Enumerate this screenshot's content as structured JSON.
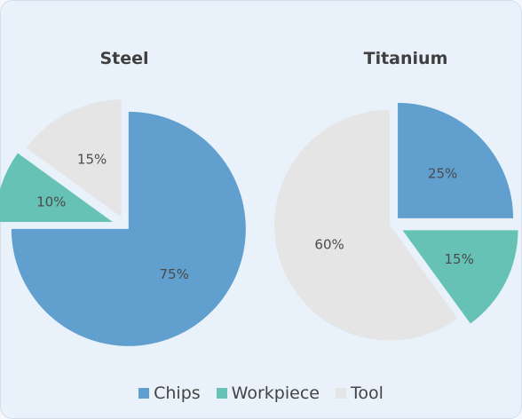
{
  "chart_data": [
    {
      "type": "pie",
      "title": "Steel",
      "slices": [
        {
          "label": "Chips",
          "value": 75,
          "color": "#619fcf"
        },
        {
          "label": "Workpiece",
          "value": 10,
          "color": "#66c2b4"
        },
        {
          "label": "Tool",
          "value": 15,
          "color": "#e5e5e5"
        }
      ],
      "data_labels": [
        "75%",
        "10%",
        "15%"
      ]
    },
    {
      "type": "pie",
      "title": "Titanium",
      "slices": [
        {
          "label": "Chips",
          "value": 25,
          "color": "#619fcf"
        },
        {
          "label": "Workpiece",
          "value": 15,
          "color": "#66c2b4"
        },
        {
          "label": "Tool",
          "value": 60,
          "color": "#e5e5e5"
        }
      ],
      "data_labels": [
        "25%",
        "15%",
        "60%"
      ]
    }
  ],
  "legend": {
    "items": [
      {
        "label": "Chips",
        "color": "#619fcf"
      },
      {
        "label": "Workpiece",
        "color": "#66c2b4"
      },
      {
        "label": "Tool",
        "color": "#e5e5e5"
      }
    ],
    "placement": "bottom"
  }
}
